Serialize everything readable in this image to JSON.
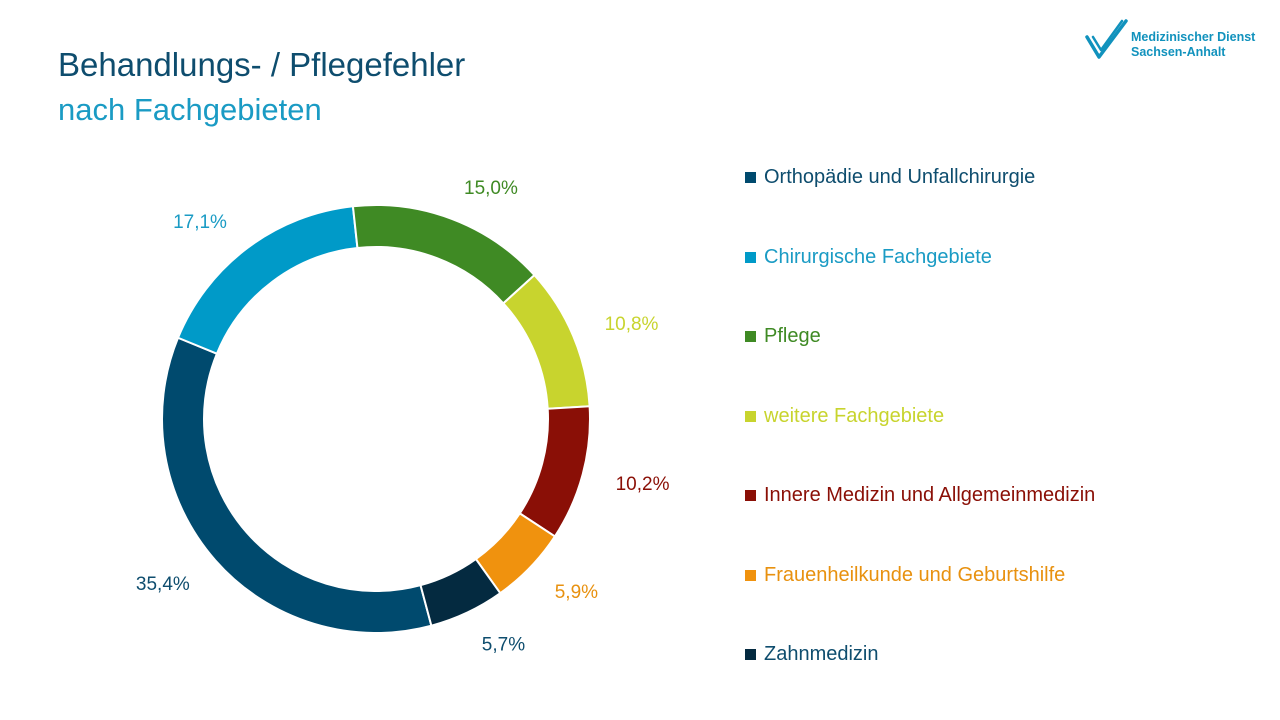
{
  "header": {
    "title": "Behandlungs-  / Pflegefehler",
    "subtitle": "nach Fachgebieten"
  },
  "logo": {
    "line1": "Medizinischer Dienst",
    "line2": "Sachsen-Anhalt",
    "icon": "check-logo-icon",
    "color": "#1192bd"
  },
  "chart_data": {
    "type": "pie",
    "style": "donut",
    "title": "Behandlungs-  / Pflegefehler nach Fachgebieten",
    "legend_position": "right",
    "series": [
      {
        "name": "Orthopädie und Unfallchirurgie",
        "value": 35.4,
        "label": "35,4%",
        "color": "#004a6e"
      },
      {
        "name": "Chirurgische Fachgebiete",
        "value": 17.1,
        "label": "17,1%",
        "color": "#009ac8"
      },
      {
        "name": "Pflege",
        "value": 15.0,
        "label": "15,0%",
        "color": "#3f8a24"
      },
      {
        "name": "weitere Fachgebiete",
        "value": 10.8,
        "label": "10,8%",
        "color": "#c8d42e"
      },
      {
        "name": "Innere Medizin und Allgemeinmedizin",
        "value": 10.2,
        "label": "10,2%",
        "color": "#8a0f06"
      },
      {
        "name": "Frauenheilkunde und Geburtshilfe",
        "value": 5.9,
        "label": "5,9%",
        "color": "#f0920e"
      },
      {
        "name": "Zahnmedizin",
        "value": 5.7,
        "label": "5,7%",
        "color": "#042a40"
      }
    ],
    "label_colors": [
      "#0e4d6e",
      "#1a9bc4",
      "#3f8a24",
      "#c8d42e",
      "#8a0f06",
      "#e8910f",
      "#0e4d6e"
    ]
  }
}
